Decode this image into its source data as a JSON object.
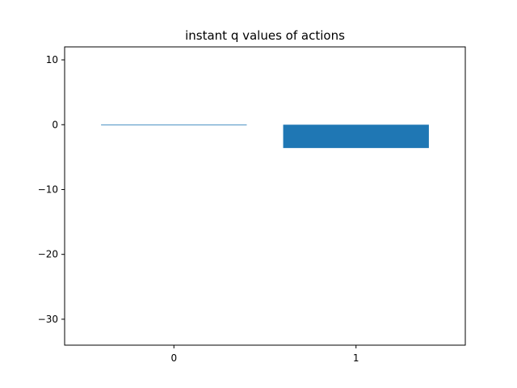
{
  "chart_data": {
    "type": "bar",
    "title": "instant q values of actions",
    "xlabel": "",
    "ylabel": "",
    "categories": [
      "0",
      "1"
    ],
    "values": [
      -0.05,
      -3.6
    ],
    "ylim": [
      -34,
      12
    ],
    "yticks": [
      10,
      0,
      -10,
      -20,
      -30
    ],
    "ytick_labels": [
      "10",
      "0",
      "−10",
      "−20",
      "−30"
    ],
    "grid": false,
    "bar_color": "#1f77b4"
  }
}
